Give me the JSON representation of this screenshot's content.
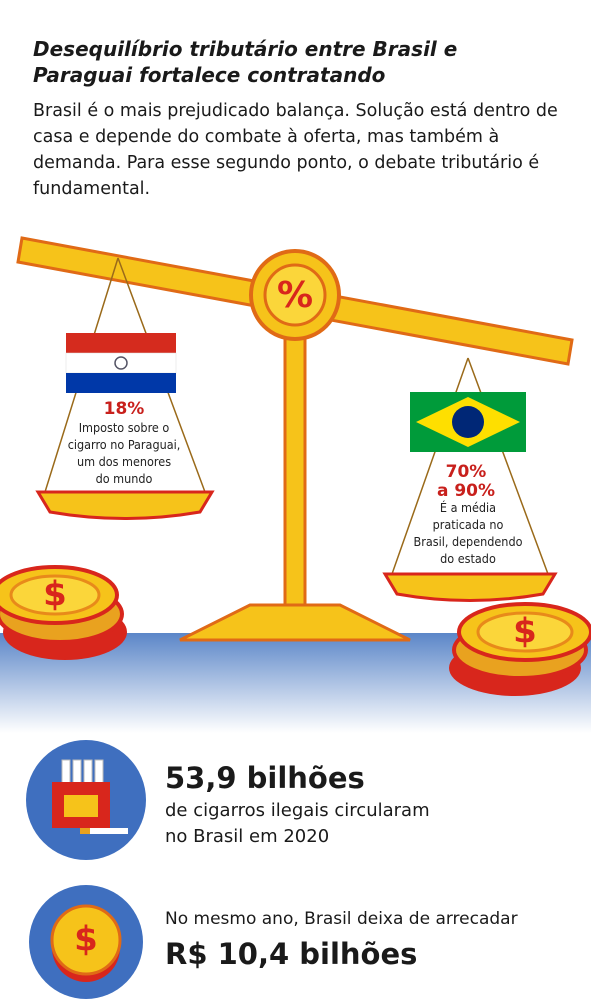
{
  "header": {
    "title": "Desequilíbrio tributário entre Brasil e Paraguai fortalece contratando",
    "subtitle": "Brasil é o mais prejudicado balança. Solução está dentro de casa e depende do combate à oferta, mas também à demanda. Para esse segundo ponto, o debate tributário é fundamental."
  },
  "scale": {
    "symbol": "%",
    "coin_symbol": "$",
    "paraguay": {
      "rate": "18%",
      "lines": [
        "Imposto sobre o",
        "cigarro no Paraguai,",
        "um dos menores",
        "do mundo"
      ]
    },
    "brasil": {
      "rate_lines": [
        "70%",
        "a 90%"
      ],
      "lines": [
        "É a média",
        "praticada no",
        "Brasil, dependendo",
        "do estado"
      ]
    }
  },
  "stats": [
    {
      "highlight": "53,9 bilhões",
      "lines": [
        "de cigarros ilegais circularam",
        "no Brasil em 2020"
      ]
    },
    {
      "lines": [
        "No mesmo ano, Brasil deixa de arrecadar"
      ],
      "highlight": "R$ 10,4 bilhões"
    }
  ]
}
